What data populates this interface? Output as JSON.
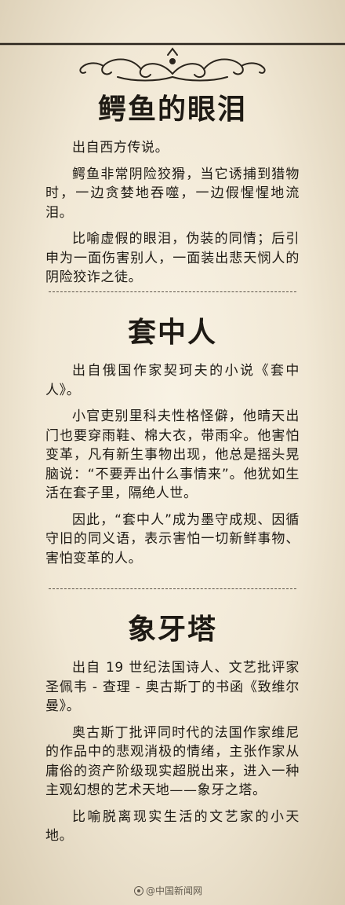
{
  "sections": [
    {
      "title": "鳄鱼的眼泪",
      "paragraphs": [
        "出自西方传说。",
        "鳄鱼非常阴险狡猾，当它诱捕到猎物时，一边贪婪地吞噬，一边假惺惺地流泪。",
        "比喻虚假的眼泪，伪装的同情；后引申为一面伤害别人，一面装出悲天悯人的阴险狡诈之徒。"
      ]
    },
    {
      "title": "套中人",
      "paragraphs": [
        "出自俄国作家契珂夫的小说《套中人》。",
        "小官吏别里科夫性格怪僻，他晴天出门也要穿雨鞋、棉大衣，带雨伞。他害怕变革，凡有新生事物出现，他总是摇头晃脑说：“不要弄出什么事情来”。他犹如生活在套子里，隔绝人世。",
        "因此，“套中人”成为墨守成规、因循守旧的同义语，表示害怕一切新鲜事物、害怕变革的人。"
      ]
    },
    {
      "title": "象牙塔",
      "paragraphs": [
        "出自 19 世纪法国诗人、文艺批评家圣佩韦 - 查理 - 奥古斯丁的书函《致维尔曼》。",
        "奥古斯丁批评同时代的法国作家维尼的作品中的悲观消极的情绪，主张作家从庸俗的资产阶级现实超脱出来，进入一种主观幻想的艺术天地——象牙之塔。",
        "比喻脱离现实生活的文艺家的小天地。"
      ]
    }
  ],
  "watermark": {
    "text": "@中国新闻网",
    "icon": "weibo-logo-icon"
  }
}
